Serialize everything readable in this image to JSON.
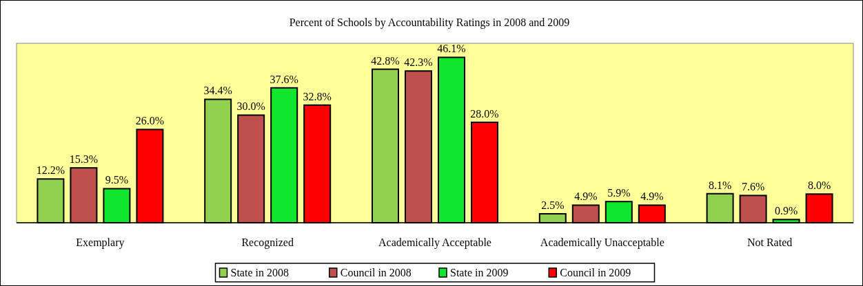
{
  "chart_data": {
    "type": "bar",
    "title": "Percent of Schools by Accountability Ratings in 2008 and 2009",
    "categories": [
      "Exemplary",
      "Recognized",
      "Academically Acceptable",
      "Academically Unacceptable",
      "Not Rated"
    ],
    "series": [
      {
        "name": "State in 2008",
        "color": "#92d050",
        "values": [
          12.2,
          34.4,
          42.8,
          2.5,
          8.1
        ],
        "value_labels": [
          "12.2%",
          "34.4%",
          "42.8%",
          "2.5%",
          "8.1%"
        ]
      },
      {
        "name": "Council in 2008",
        "color": "#c0504d",
        "values": [
          15.3,
          30.0,
          42.3,
          4.9,
          7.6
        ],
        "value_labels": [
          "15.3%",
          "30.0%",
          "42.3%",
          "4.9%",
          "7.6%"
        ]
      },
      {
        "name": "State in 2009",
        "color": "#11e62e",
        "values": [
          9.5,
          37.6,
          46.1,
          5.9,
          0.9
        ],
        "value_labels": [
          "9.5%",
          "37.6%",
          "46.1%",
          "5.9%",
          "0.9%"
        ]
      },
      {
        "name": "Council in 2009",
        "color": "#ff0000",
        "values": [
          26.0,
          32.8,
          28.0,
          4.9,
          8.0
        ],
        "value_labels": [
          "26.0%",
          "32.8%",
          "28.0%",
          "4.9%",
          "8.0%"
        ]
      }
    ],
    "legend": "bottom"
  }
}
